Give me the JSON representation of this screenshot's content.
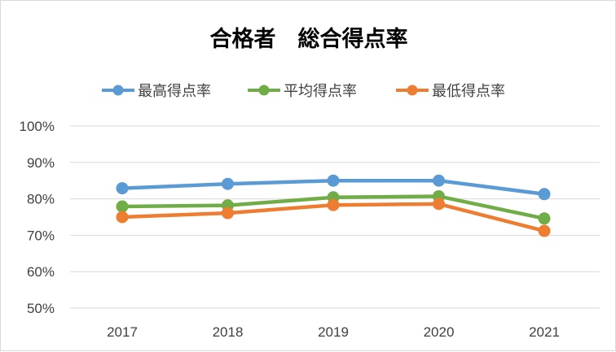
{
  "chart_data": {
    "type": "line",
    "title": "合格者　総合得点率",
    "xlabel": "",
    "ylabel": "",
    "categories": [
      "2017",
      "2018",
      "2019",
      "2020",
      "2021"
    ],
    "ylim": [
      50,
      100
    ],
    "yticks": [
      "50%",
      "60%",
      "70%",
      "80%",
      "90%",
      "100%"
    ],
    "ytick_values": [
      50,
      60,
      70,
      80,
      90,
      100
    ],
    "grid": true,
    "legend_position": "top",
    "series": [
      {
        "name": "最高得点率",
        "color": "#5b9bd5",
        "values": [
          82.9,
          84.1,
          85.0,
          85.0,
          81.3
        ]
      },
      {
        "name": "平均得点率",
        "color": "#70ad47",
        "values": [
          77.9,
          78.2,
          80.4,
          80.7,
          74.6
        ]
      },
      {
        "name": "最低得点率",
        "color": "#ed7d31",
        "values": [
          75.0,
          76.1,
          78.3,
          78.6,
          71.2
        ]
      }
    ]
  }
}
